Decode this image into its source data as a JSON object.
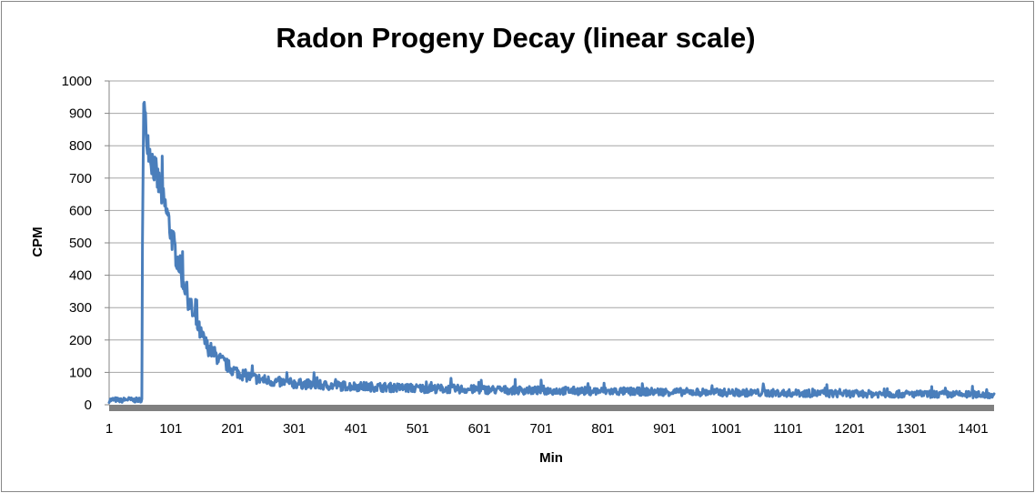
{
  "chart_data": {
    "type": "line",
    "title": "Radon Progeny Decay (linear scale)",
    "xlabel": "Min",
    "ylabel": "CPM",
    "ylim": [
      0,
      1000
    ],
    "xlim": [
      1,
      1435
    ],
    "y_ticks": [
      "0",
      "100",
      "200",
      "300",
      "400",
      "500",
      "600",
      "700",
      "800",
      "900",
      "1000"
    ],
    "x_ticks": [
      "1",
      "101",
      "201",
      "301",
      "401",
      "501",
      "601",
      "701",
      "801",
      "901",
      "1001",
      "1101",
      "1201",
      "1301",
      "1401"
    ],
    "grid": true,
    "legend": "none",
    "series": [
      {
        "color": "#4a7ebb",
        "points": [
          [
            1,
            14
          ],
          [
            10,
            16
          ],
          [
            20,
            13
          ],
          [
            30,
            17
          ],
          [
            40,
            14
          ],
          [
            50,
            15
          ],
          [
            54,
            16
          ],
          [
            55,
            500
          ],
          [
            57,
            930
          ],
          [
            60,
            860
          ],
          [
            63,
            830
          ],
          [
            66,
            790
          ],
          [
            70,
            760
          ],
          [
            75,
            725
          ],
          [
            80,
            690
          ],
          [
            85,
            660
          ],
          [
            90,
            620
          ],
          [
            95,
            590
          ],
          [
            100,
            540
          ],
          [
            105,
            500
          ],
          [
            110,
            460
          ],
          [
            115,
            430
          ],
          [
            120,
            390
          ],
          [
            125,
            360
          ],
          [
            130,
            320
          ],
          [
            135,
            290
          ],
          [
            140,
            260
          ],
          [
            145,
            240
          ],
          [
            150,
            215
          ],
          [
            160,
            180
          ],
          [
            170,
            160
          ],
          [
            180,
            140
          ],
          [
            190,
            125
          ],
          [
            200,
            110
          ],
          [
            210,
            100
          ],
          [
            220,
            92
          ],
          [
            230,
            85
          ],
          [
            250,
            77
          ],
          [
            270,
            71
          ],
          [
            300,
            66
          ],
          [
            350,
            60
          ],
          [
            400,
            57
          ],
          [
            450,
            54
          ],
          [
            500,
            51
          ],
          [
            600,
            47
          ],
          [
            700,
            44
          ],
          [
            800,
            42
          ],
          [
            900,
            40
          ],
          [
            1000,
            38
          ],
          [
            1100,
            36
          ],
          [
            1200,
            34
          ],
          [
            1300,
            33
          ],
          [
            1435,
            31
          ]
        ]
      }
    ],
    "plot_area_color": "#ffffff",
    "gridline_color": "#a6a6a6",
    "axis_color": "#868686"
  }
}
